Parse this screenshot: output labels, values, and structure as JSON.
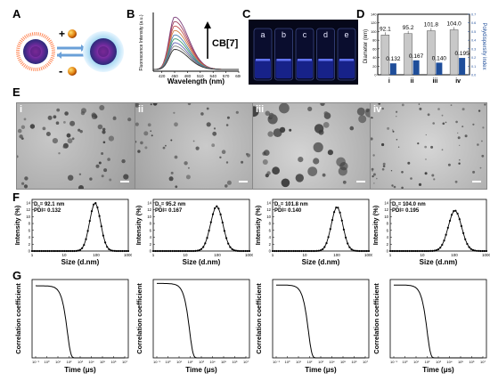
{
  "panel_labels": {
    "A": "A",
    "B": "B",
    "C": "C",
    "D": "D",
    "E": "E",
    "F": "F",
    "G": "G"
  },
  "panelA": {
    "plus": "+",
    "minus": "-"
  },
  "panelB": {
    "ylabel": "Fluorescence Intensity (a.u.)",
    "xlabel": "Wavelength (nm)",
    "arrow_label": "CB[7]",
    "xticks": [
      "420",
      "450",
      "480",
      "510",
      "540",
      "570",
      "600"
    ]
  },
  "panelC": {
    "vials": [
      "a",
      "b",
      "c",
      "d",
      "e"
    ]
  },
  "panelD": {
    "ylabel_left": "Diameter (nm)",
    "ylabel_right": "Polydispersity index",
    "yticks_left": [
      "0",
      "20",
      "40",
      "60",
      "80",
      "100",
      "120",
      "140"
    ],
    "yticks_right": [
      "0.0",
      "0.1",
      "0.2",
      "0.3",
      "0.4",
      "0.5",
      "0.6",
      "0.7"
    ]
  },
  "panelE": {
    "images": [
      "i",
      "ii",
      "iii",
      "iv"
    ]
  },
  "panelF": [
    {
      "dh_prefix": "D",
      "dh_sub": "h",
      "dh_text": "= 92.1 nm",
      "pdi": "PDI= 0.132"
    },
    {
      "dh_prefix": "D",
      "dh_sub": "h",
      "dh_text": "= 95.2 nm",
      "pdi": "PDI= 0.167"
    },
    {
      "dh_prefix": "D",
      "dh_sub": "h",
      "dh_text": "= 101.8 nm",
      "pdi": "PDI= 0.140"
    },
    {
      "dh_prefix": "D",
      "dh_sub": "h",
      "dh_text": "= 104.0 nm",
      "pdi": "PDI= 0.195"
    }
  ],
  "panelF_axes": {
    "ylabel": "Intensity (%)",
    "xlabel": "Size (d.nm)",
    "xticks": [
      "1",
      "10",
      "100",
      "1000"
    ],
    "yticks": [
      "0",
      "2",
      "4",
      "6",
      "8",
      "10",
      "12",
      "14"
    ]
  },
  "panelG_axes": {
    "ylabel": "Correlation coefficient",
    "xlabel": "Time (μs)",
    "xticks": [
      "10⁻¹",
      "10⁰",
      "10¹",
      "10²",
      "10³",
      "10⁴",
      "10⁵",
      "10⁶",
      "10⁷"
    ]
  },
  "chart_data": [
    {
      "type": "line",
      "panel": "B",
      "xlabel": "Wavelength (nm)",
      "ylabel": "Fluorescence Intensity (a.u.)",
      "xlim": [
        400,
        600
      ],
      "peak_x": 450,
      "series": [
        {
          "peak": 0.94
        },
        {
          "peak": 0.86
        },
        {
          "peak": 0.78
        },
        {
          "peak": 0.7
        },
        {
          "peak": 0.62
        },
        {
          "peak": 0.55
        },
        {
          "peak": 0.48
        },
        {
          "peak": 0.42
        },
        {
          "peak": 0.36
        }
      ],
      "colors": [
        "#7b3f7a",
        "#a04060",
        "#c0504d",
        "#d08040",
        "#4a7fb0",
        "#3a9a6a",
        "#6060b0",
        "#808080",
        "#303030"
      ]
    },
    {
      "type": "bar",
      "panel": "D",
      "categories": [
        "i",
        "ii",
        "iii",
        "iv"
      ],
      "series": [
        {
          "name": "Diameter (nm)",
          "values": [
            92.1,
            95.2,
            101.8,
            104.0
          ],
          "color": "#c8c8c8"
        },
        {
          "name": "Polydispersity index",
          "values": [
            0.132,
            0.167,
            0.14,
            0.195
          ],
          "color": "#1f4e9a"
        }
      ],
      "ylim_left": [
        0,
        140
      ],
      "ylim_right": [
        0,
        0.7
      ]
    },
    {
      "type": "line",
      "panel": "F",
      "x_log_range": [
        1,
        1000
      ],
      "ylim": [
        0,
        15
      ],
      "series": [
        {
          "peak_size": 92.1,
          "peak": 14.0,
          "width": 0.24
        },
        {
          "peak_size": 95.2,
          "peak": 13.0,
          "width": 0.27
        },
        {
          "peak_size": 101.8,
          "peak": 12.8,
          "width": 0.25
        },
        {
          "peak_size": 104.0,
          "peak": 11.8,
          "width": 0.29
        }
      ]
    },
    {
      "type": "line",
      "panel": "G",
      "x_log_range": [
        -1,
        7
      ],
      "ylim": [
        0,
        1
      ],
      "series": [
        {
          "plateau": 0.92,
          "decay_log": 1.9
        },
        {
          "plateau": 0.95,
          "decay_log": 2.0
        },
        {
          "plateau": 0.93,
          "decay_log": 1.95
        },
        {
          "plateau": 0.93,
          "decay_log": 2.05
        }
      ]
    }
  ]
}
